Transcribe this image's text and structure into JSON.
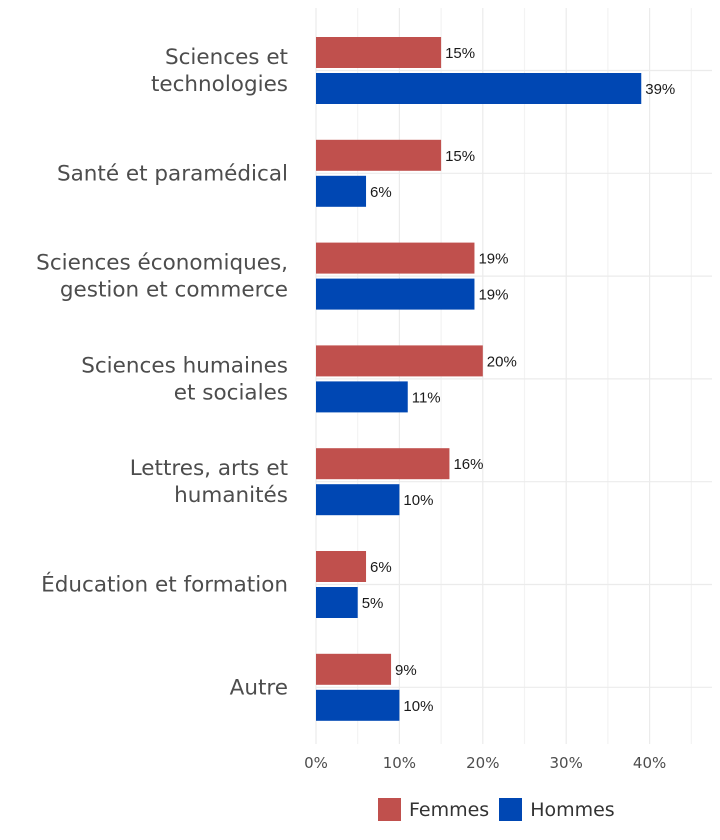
{
  "chart_data": {
    "type": "bar",
    "orientation": "horizontal",
    "categories": [
      [
        "Sciences et",
        "technologies"
      ],
      [
        "Santé et paramédical"
      ],
      [
        "Sciences économiques,",
        "gestion et commerce"
      ],
      [
        "Sciences humaines",
        "et sociales"
      ],
      [
        "Lettres, arts et",
        "humanités"
      ],
      [
        "Éducation et formation"
      ],
      [
        "Autre"
      ]
    ],
    "series": [
      {
        "name": "Femmes",
        "color": "#c0504d",
        "values": [
          15,
          15,
          19,
          20,
          16,
          6,
          9
        ]
      },
      {
        "name": "Hommes",
        "color": "#0047b3",
        "values": [
          39,
          6,
          19,
          11,
          10,
          5,
          10
        ]
      }
    ],
    "value_labels": [
      [
        "15%",
        "15%",
        "19%",
        "20%",
        "16%",
        "6%",
        "9%"
      ],
      [
        "39%",
        "6%",
        "19%",
        "11%",
        "10%",
        "5%",
        "10%"
      ]
    ],
    "xlim": [
      0,
      45
    ],
    "x_ticks": [
      0,
      10,
      20,
      30,
      40
    ],
    "x_tick_labels": [
      "0%",
      "10%",
      "20%",
      "30%",
      "40%"
    ],
    "grid": true,
    "legend_position": "bottom",
    "title": "",
    "xlabel": "",
    "ylabel": ""
  }
}
